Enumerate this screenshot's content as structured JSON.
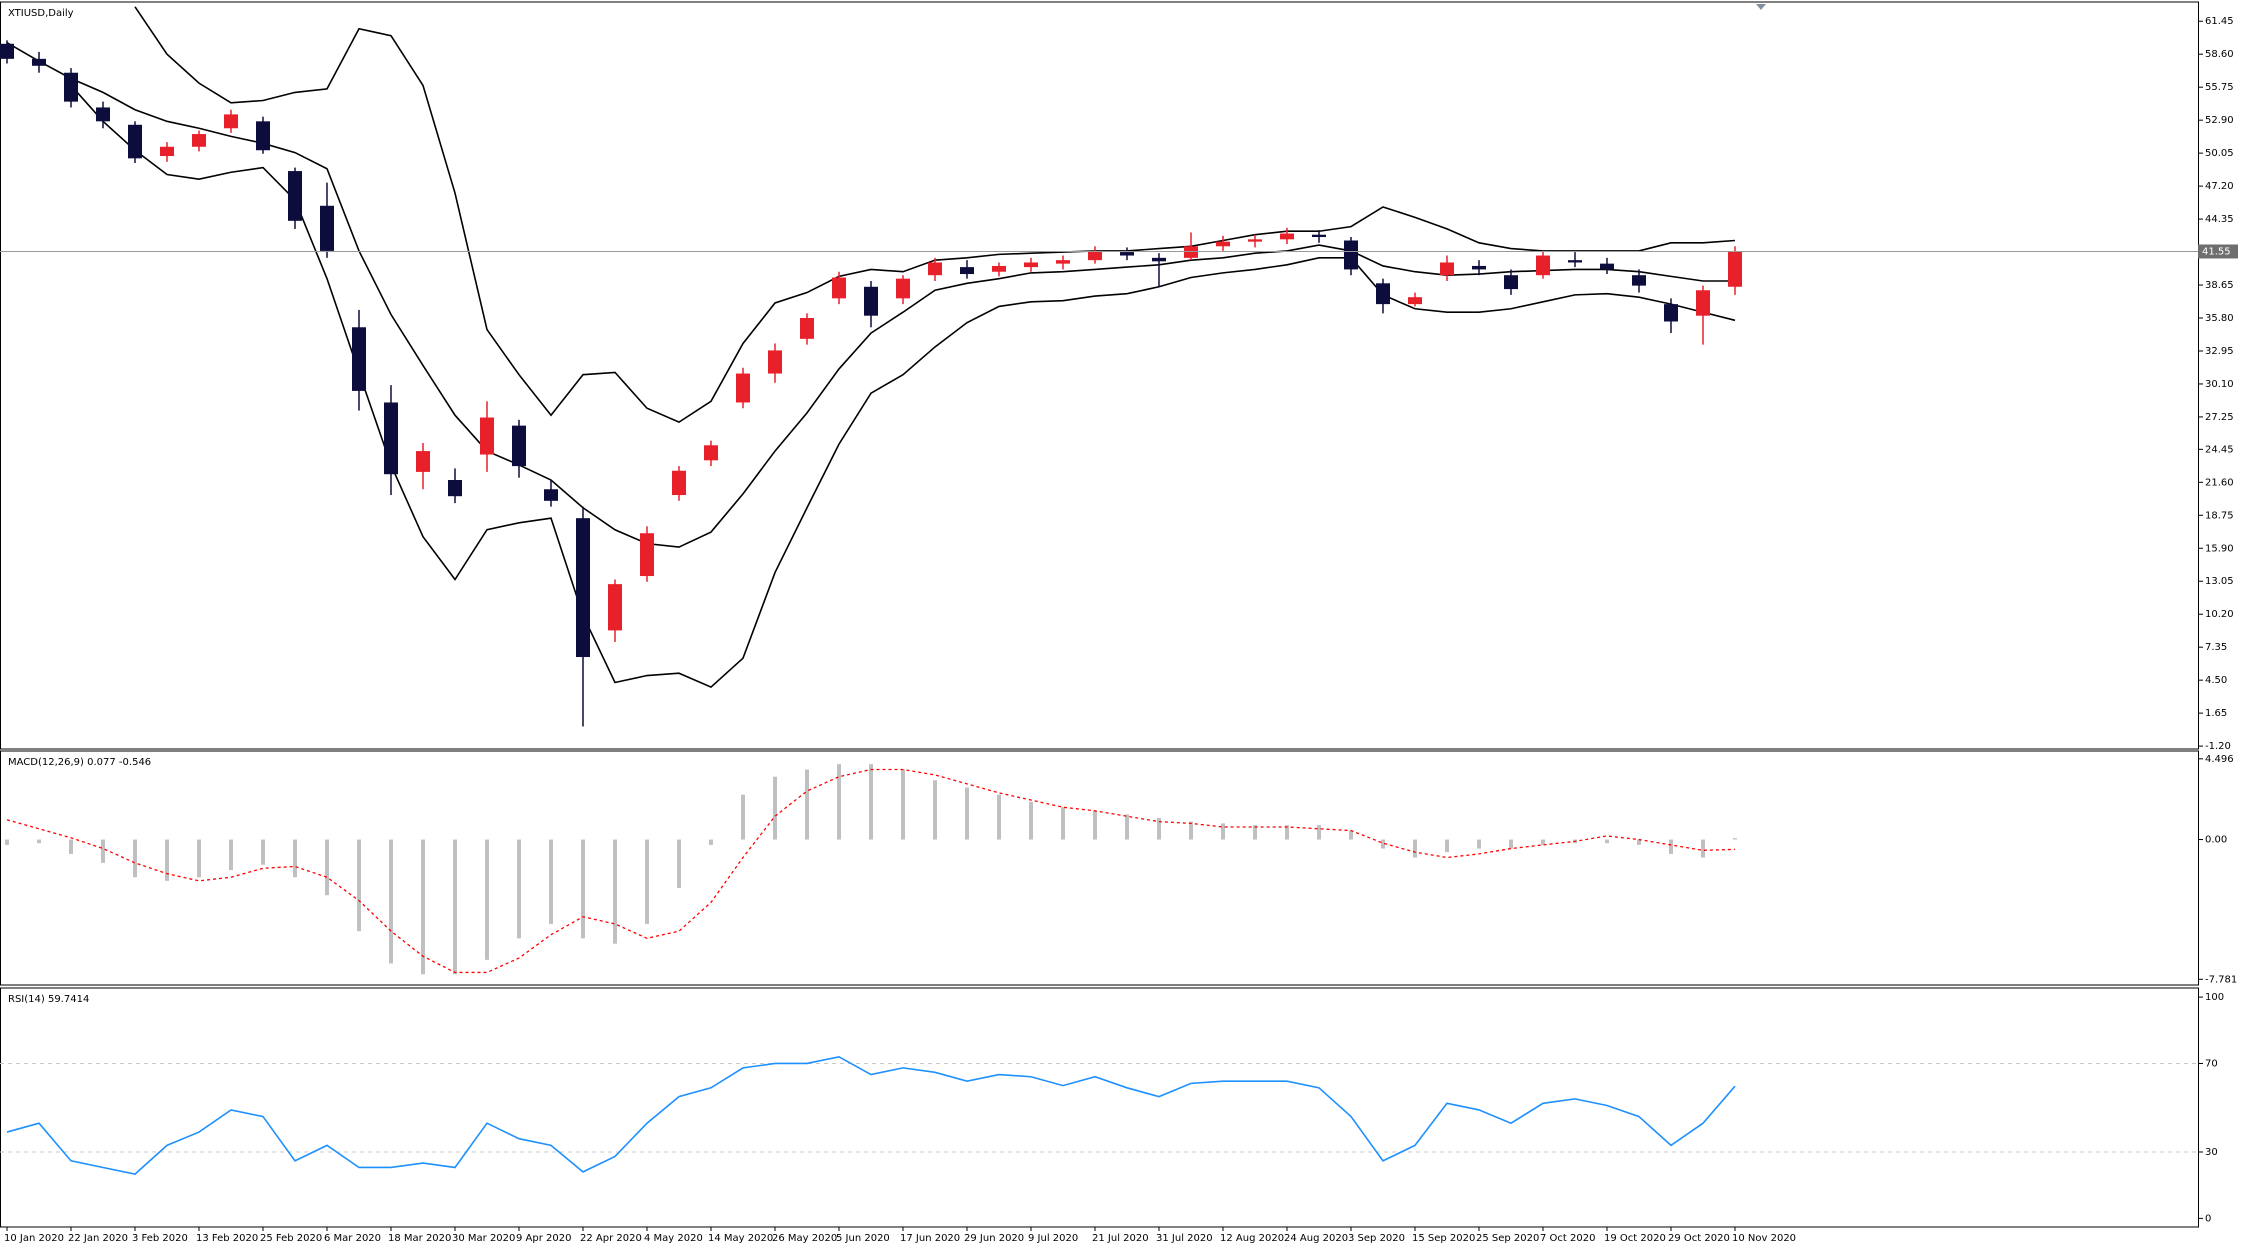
{
  "chart_data": [
    {
      "type": "candlestick",
      "title": "XTIUSD,Daily",
      "categories": [
        "10 Jan 2020",
        null,
        "22 Jan 2020",
        null,
        "3 Feb 2020",
        null,
        "13 Feb 2020",
        null,
        "25 Feb 2020",
        null,
        "6 Mar 2020",
        null,
        "18 Mar 2020",
        null,
        "30 Mar 2020",
        null,
        "9 Apr 2020",
        null,
        "22 Apr 2020",
        null,
        "4 May 2020",
        null,
        "14 May 2020",
        null,
        "26 May 2020",
        null,
        "5 Jun 2020",
        null,
        "17 Jun 2020",
        null,
        "29 Jun 2020",
        null,
        "9 Jul 2020",
        null,
        "21 Jul 2020",
        null,
        "31 Jul 2020",
        null,
        "12 Aug 2020",
        null,
        "24 Aug 2020",
        null,
        "3 Sep 2020",
        null,
        "15 Sep 2020",
        null,
        "25 Sep 2020",
        null,
        "7 Oct 2020",
        null,
        "19 Oct 2020",
        null,
        "29 Oct 2020",
        null,
        "10 Nov 2020"
      ],
      "open": [
        59.5,
        58.2,
        57.0,
        54.0,
        52.5,
        49.8,
        50.6,
        52.2,
        52.8,
        48.5,
        45.5,
        35.0,
        28.5,
        22.5,
        21.8,
        24.0,
        26.5,
        21.0,
        18.5,
        8.8,
        13.5,
        20.5,
        23.5,
        28.5,
        31.0,
        34.0,
        37.5,
        38.5,
        37.5,
        39.5,
        40.2,
        39.8,
        40.2,
        40.5,
        40.8,
        41.5,
        41.0,
        41.0,
        42.0,
        42.4,
        42.6,
        43.0,
        42.5,
        38.8,
        37.0,
        39.5,
        40.3,
        39.5,
        39.5,
        40.8,
        40.5,
        39.5,
        37.0,
        36.0,
        38.5
      ],
      "high": [
        59.8,
        58.8,
        57.4,
        54.5,
        52.8,
        51.0,
        52.0,
        53.8,
        53.2,
        48.8,
        47.5,
        36.5,
        30.0,
        25.0,
        22.8,
        28.6,
        27.0,
        21.8,
        19.5,
        13.2,
        17.8,
        23.0,
        25.2,
        31.5,
        33.6,
        36.2,
        39.8,
        39.0,
        39.5,
        41.0,
        40.8,
        40.6,
        41.0,
        41.2,
        42.0,
        41.9,
        41.4,
        43.2,
        42.9,
        43.0,
        43.6,
        43.4,
        42.8,
        39.2,
        38.0,
        41.2,
        40.8,
        40.0,
        41.6,
        41.5,
        41.0,
        40.0,
        37.5,
        38.6,
        42.0
      ],
      "low": [
        57.8,
        57.0,
        54.0,
        52.2,
        49.2,
        49.3,
        50.2,
        51.8,
        50.0,
        43.5,
        41.0,
        27.8,
        20.5,
        21.0,
        19.8,
        22.5,
        22.0,
        19.5,
        0.5,
        7.8,
        13.0,
        20.0,
        23.0,
        28.0,
        30.2,
        33.5,
        37.0,
        35.0,
        37.0,
        39.0,
        39.2,
        39.4,
        39.8,
        40.0,
        40.5,
        40.8,
        38.5,
        40.8,
        41.6,
        41.9,
        42.2,
        42.3,
        39.5,
        36.2,
        36.8,
        39.0,
        39.5,
        37.8,
        39.2,
        40.2,
        39.6,
        38.0,
        34.5,
        33.5,
        37.8
      ],
      "close": [
        58.2,
        57.6,
        54.5,
        52.8,
        49.6,
        50.6,
        51.7,
        53.4,
        50.3,
        44.2,
        41.6,
        29.5,
        22.3,
        24.3,
        20.4,
        27.2,
        23.0,
        20.0,
        6.5,
        12.8,
        17.2,
        22.6,
        24.8,
        31.0,
        33.0,
        35.8,
        39.3,
        36.0,
        39.2,
        40.6,
        39.6,
        40.3,
        40.6,
        40.8,
        41.6,
        41.2,
        40.7,
        42.0,
        42.4,
        42.6,
        43.1,
        42.8,
        40.0,
        37.0,
        37.6,
        40.6,
        40.0,
        38.3,
        41.2,
        40.6,
        40.0,
        38.6,
        35.5,
        38.2,
        41.55
      ],
      "up_color": "#e8202a",
      "down_color": "#0d0d3d",
      "overlays": [
        {
          "color": "#000000",
          "values": [
            null,
            null,
            null,
            null,
            62.7,
            58.6,
            56.1,
            54.4,
            54.6,
            55.3,
            55.6,
            60.8,
            60.2,
            55.9,
            46.6,
            34.8,
            30.9,
            27.4,
            30.9,
            31.1,
            28.0,
            26.8,
            28.6,
            33.6,
            37.1,
            38.0,
            39.4,
            40.0,
            39.8,
            40.8,
            41.0,
            41.3,
            41.4,
            41.5,
            41.6,
            41.6,
            41.8,
            42.0,
            42.5,
            43.0,
            43.3,
            43.3,
            43.7,
            45.4,
            44.5,
            43.5,
            42.3,
            41.8,
            41.6,
            41.6,
            41.6,
            41.6,
            42.3,
            42.3,
            42.5
          ]
        },
        {
          "color": "#000000",
          "values": [
            59.6,
            58.0,
            56.5,
            55.3,
            53.8,
            52.8,
            52.2,
            51.5,
            50.9,
            50.1,
            48.7,
            41.6,
            36.1,
            31.7,
            27.4,
            24.3,
            23.1,
            21.8,
            19.4,
            17.5,
            16.3,
            16.0,
            17.3,
            20.6,
            24.3,
            27.6,
            31.4,
            34.5,
            36.3,
            38.2,
            38.8,
            39.2,
            39.7,
            39.8,
            40.0,
            40.2,
            40.4,
            40.8,
            41.0,
            41.4,
            41.6,
            42.1,
            41.6,
            40.3,
            39.8,
            39.5,
            39.6,
            39.8,
            39.9,
            40.0,
            40.0,
            39.8,
            39.4,
            39.0,
            39.0
          ]
        },
        {
          "color": "#000000",
          "values": [
            null,
            null,
            55.9,
            52.8,
            50.3,
            48.2,
            47.8,
            48.4,
            48.8,
            46.0,
            39.2,
            31.1,
            23.1,
            16.9,
            13.2,
            17.5,
            18.1,
            18.5,
            10.1,
            4.3,
            4.9,
            5.1,
            3.9,
            6.4,
            13.8,
            19.4,
            24.9,
            29.3,
            30.9,
            33.3,
            35.4,
            36.8,
            37.2,
            37.3,
            37.7,
            37.9,
            38.5,
            39.3,
            39.7,
            40.0,
            40.4,
            41.0,
            41.0,
            37.8,
            36.6,
            36.3,
            36.3,
            36.6,
            37.2,
            37.8,
            37.9,
            37.6,
            37.0,
            36.3,
            35.6
          ]
        }
      ],
      "last_price": 41.55,
      "last_price_color": "#9a9a9a",
      "ylim": [
        -1.45,
        62.94
      ],
      "yticks": [
        61.45,
        {
          "value": 58.6,
          "label": "58.60"
        },
        55.75,
        {
          "value": 52.9,
          "label": "52.90"
        },
        50.05,
        {
          "value": 47.2,
          "label": "47.20"
        },
        44.35,
        38.65,
        {
          "value": 35.8,
          "label": "35.80"
        },
        32.95,
        {
          "value": 30.1,
          "label": "30.10"
        },
        27.25,
        24.45,
        {
          "value": 21.6,
          "label": "21.60"
        },
        18.75,
        {
          "value": 15.9,
          "label": "15.90"
        },
        13.05,
        {
          "value": 10.2,
          "label": "10.20"
        },
        7.35,
        {
          "value": 4.5,
          "label": "4.50"
        },
        1.65,
        {
          "value": -1.2,
          "label": "-1.20"
        }
      ]
    },
    {
      "type": "macd",
      "title": "MACD(12,26,9) 0.077 -0.546",
      "color": "#c0c0c0",
      "values": [
        -0.3,
        -0.2,
        -0.8,
        -1.3,
        -2.1,
        -2.3,
        -2.1,
        -1.7,
        -1.4,
        -2.1,
        -3.1,
        -5.1,
        -6.9,
        -7.5,
        -7.5,
        -6.7,
        -5.5,
        -4.7,
        -5.5,
        -5.8,
        -4.7,
        -2.7,
        -0.3,
        2.5,
        3.5,
        3.9,
        4.2,
        4.2,
        3.9,
        3.3,
        2.9,
        2.5,
        2.1,
        1.8,
        1.6,
        1.4,
        1.2,
        1.0,
        0.9,
        0.8,
        0.8,
        0.8,
        0.5,
        -0.5,
        -1.0,
        -0.7,
        -0.5,
        -0.5,
        -0.3,
        -0.2,
        -0.2,
        -0.3,
        -0.8,
        -1.0,
        0.077
      ],
      "signal": {
        "color": "#ff0000",
        "values": [
          1.1,
          0.6,
          0.1,
          -0.5,
          -1.3,
          -1.9,
          -2.3,
          -2.1,
          -1.6,
          -1.5,
          -2.1,
          -3.4,
          -5.1,
          -6.5,
          -7.4,
          -7.4,
          -6.6,
          -5.3,
          -4.3,
          -4.7,
          -5.5,
          -5.1,
          -3.5,
          -1.0,
          1.3,
          2.7,
          3.5,
          3.9,
          3.9,
          3.6,
          3.1,
          2.6,
          2.2,
          1.8,
          1.6,
          1.3,
          1.0,
          0.9,
          0.7,
          0.7,
          0.7,
          0.6,
          0.5,
          -0.2,
          -0.7,
          -1.0,
          -0.8,
          -0.5,
          -0.3,
          -0.1,
          0.2,
          0.0,
          -0.3,
          -0.6,
          -0.546
        ]
      },
      "ylim": [
        -8.1,
        4.82
      ],
      "yticks": [
        4.496,
        {
          "value": 0,
          "label": "0.00"
        },
        -7.781
      ]
    },
    {
      "type": "line",
      "title": "RSI(14) 59.7414",
      "color": "#1e90ff",
      "values": [
        39,
        43,
        26,
        23,
        20,
        33,
        39,
        49,
        46,
        26,
        33,
        23,
        23,
        25,
        23,
        43,
        36,
        33,
        21,
        28,
        43,
        55,
        59,
        68,
        70,
        70,
        73,
        65,
        68,
        66,
        62,
        65,
        64,
        60,
        64,
        59,
        55,
        61,
        62,
        62,
        62,
        59,
        46,
        26,
        33,
        52,
        49,
        43,
        52,
        54,
        51,
        46,
        33,
        43,
        59.7414
      ],
      "levels": [
        70,
        30
      ],
      "level_color": "#c8c8c8",
      "ylim": [
        -3.9,
        103.2
      ],
      "yticks": [
        100,
        70,
        30,
        0
      ]
    }
  ]
}
